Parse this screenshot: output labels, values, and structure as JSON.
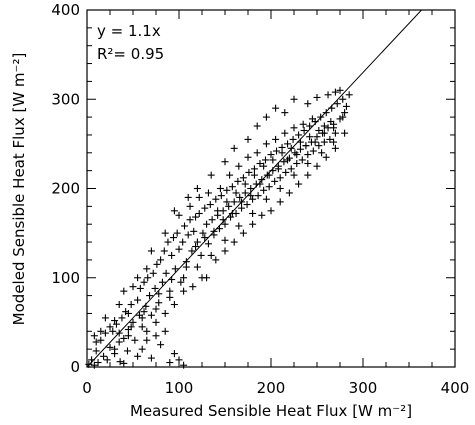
{
  "chart_data": {
    "type": "scatter",
    "title": "",
    "xlabel": "Measured Sensible Heat Flux [W m⁻²]",
    "ylabel": "Modeled Sensible Heat Flux [W m⁻²]",
    "xlim": [
      0,
      400
    ],
    "ylim": [
      0,
      400
    ],
    "xticks": [
      "0",
      "100",
      "200",
      "300",
      "400"
    ],
    "yticks": [
      "0",
      "100",
      "200",
      "300",
      "400"
    ],
    "annotations": {
      "equation": "y = 1.1x",
      "r2": "R²= 0.95"
    },
    "fit_line": {
      "slope": 1.1,
      "intercept": 0
    },
    "grid": false,
    "marker": "plus",
    "points": [
      [
        2,
        3
      ],
      [
        5,
        8
      ],
      [
        8,
        2
      ],
      [
        10,
        18
      ],
      [
        12,
        5
      ],
      [
        15,
        30
      ],
      [
        18,
        12
      ],
      [
        20,
        38
      ],
      [
        22,
        8
      ],
      [
        25,
        22
      ],
      [
        28,
        40
      ],
      [
        30,
        15
      ],
      [
        32,
        48
      ],
      [
        35,
        28
      ],
      [
        36,
        6
      ],
      [
        38,
        55
      ],
      [
        40,
        32
      ],
      [
        42,
        62
      ],
      [
        44,
        18
      ],
      [
        45,
        42
      ],
      [
        48,
        70
      ],
      [
        50,
        50
      ],
      [
        52,
        30
      ],
      [
        55,
        75
      ],
      [
        57,
        58
      ],
      [
        58,
        88
      ],
      [
        60,
        45
      ],
      [
        62,
        95
      ],
      [
        64,
        68
      ],
      [
        66,
        100
      ],
      [
        68,
        80
      ],
      [
        70,
        58
      ],
      [
        72,
        105
      ],
      [
        74,
        88
      ],
      [
        76,
        115
      ],
      [
        78,
        72
      ],
      [
        80,
        120
      ],
      [
        82,
        95
      ],
      [
        84,
        130
      ],
      [
        86,
        105
      ],
      [
        88,
        140
      ],
      [
        90,
        85
      ],
      [
        92,
        125
      ],
      [
        94,
        145
      ],
      [
        96,
        110
      ],
      [
        98,
        150
      ],
      [
        100,
        132
      ],
      [
        102,
        95
      ],
      [
        104,
        140
      ],
      [
        106,
        158
      ],
      [
        108,
        118
      ],
      [
        110,
        148
      ],
      [
        112,
        165
      ],
      [
        114,
        130
      ],
      [
        116,
        152
      ],
      [
        118,
        168
      ],
      [
        120,
        140
      ],
      [
        122,
        172
      ],
      [
        124,
        125
      ],
      [
        126,
        150
      ],
      [
        128,
        178
      ],
      [
        130,
        160
      ],
      [
        132,
        138
      ],
      [
        134,
        182
      ],
      [
        136,
        165
      ],
      [
        138,
        148
      ],
      [
        140,
        188
      ],
      [
        142,
        170
      ],
      [
        144,
        155
      ],
      [
        146,
        192
      ],
      [
        148,
        175
      ],
      [
        150,
        160
      ],
      [
        152,
        198
      ],
      [
        154,
        180
      ],
      [
        156,
        168
      ],
      [
        158,
        202
      ],
      [
        160,
        185
      ],
      [
        162,
        172
      ],
      [
        164,
        208
      ],
      [
        166,
        190
      ],
      [
        168,
        178
      ],
      [
        170,
        212
      ],
      [
        172,
        195
      ],
      [
        174,
        182
      ],
      [
        176,
        218
      ],
      [
        178,
        200
      ],
      [
        180,
        188
      ],
      [
        182,
        222
      ],
      [
        184,
        205
      ],
      [
        186,
        192
      ],
      [
        188,
        228
      ],
      [
        190,
        210
      ],
      [
        192,
        198
      ],
      [
        194,
        232
      ],
      [
        196,
        215
      ],
      [
        198,
        202
      ],
      [
        200,
        238
      ],
      [
        202,
        220
      ],
      [
        204,
        208
      ],
      [
        206,
        242
      ],
      [
        208,
        225
      ],
      [
        210,
        212
      ],
      [
        212,
        246
      ],
      [
        214,
        230
      ],
      [
        216,
        218
      ],
      [
        218,
        250
      ],
      [
        220,
        234
      ],
      [
        222,
        222
      ],
      [
        224,
        255
      ],
      [
        226,
        240
      ],
      [
        228,
        228
      ],
      [
        230,
        260
      ],
      [
        232,
        244
      ],
      [
        234,
        232
      ],
      [
        236,
        265
      ],
      [
        238,
        248
      ],
      [
        240,
        238
      ],
      [
        242,
        270
      ],
      [
        244,
        252
      ],
      [
        246,
        242
      ],
      [
        248,
        275
      ],
      [
        250,
        258
      ],
      [
        252,
        248
      ],
      [
        254,
        280
      ],
      [
        256,
        262
      ],
      [
        258,
        252
      ],
      [
        260,
        285
      ],
      [
        262,
        268
      ],
      [
        264,
        255
      ],
      [
        266,
        290
      ],
      [
        268,
        272
      ],
      [
        270,
        262
      ],
      [
        272,
        295
      ],
      [
        275,
        278
      ],
      [
        278,
        300
      ],
      [
        280,
        285
      ],
      [
        282,
        292
      ],
      [
        285,
        305
      ],
      [
        60,
        20
      ],
      [
        70,
        10
      ],
      [
        80,
        25
      ],
      [
        90,
        5
      ],
      [
        95,
        15
      ],
      [
        100,
        8
      ],
      [
        40,
        4
      ],
      [
        55,
        12
      ],
      [
        65,
        30
      ],
      [
        75,
        35
      ],
      [
        85,
        40
      ],
      [
        105,
        2
      ],
      [
        45,
        60
      ],
      [
        35,
        70
      ],
      [
        50,
        90
      ],
      [
        65,
        110
      ],
      [
        30,
        52
      ],
      [
        25,
        45
      ],
      [
        20,
        55
      ],
      [
        15,
        40
      ],
      [
        10,
        28
      ],
      [
        8,
        35
      ],
      [
        40,
        85
      ],
      [
        55,
        100
      ],
      [
        70,
        130
      ],
      [
        85,
        150
      ],
      [
        95,
        175
      ],
      [
        110,
        190
      ],
      [
        120,
        200
      ],
      [
        135,
        215
      ],
      [
        150,
        230
      ],
      [
        160,
        245
      ],
      [
        175,
        255
      ],
      [
        185,
        270
      ],
      [
        195,
        280
      ],
      [
        205,
        290
      ],
      [
        215,
        285
      ],
      [
        225,
        300
      ],
      [
        240,
        295
      ],
      [
        250,
        302
      ],
      [
        262,
        305
      ],
      [
        270,
        308
      ],
      [
        275,
        310
      ],
      [
        140,
        120
      ],
      [
        150,
        130
      ],
      [
        160,
        140
      ],
      [
        170,
        150
      ],
      [
        180,
        160
      ],
      [
        190,
        170
      ],
      [
        200,
        175
      ],
      [
        210,
        185
      ],
      [
        220,
        195
      ],
      [
        230,
        205
      ],
      [
        240,
        215
      ],
      [
        250,
        225
      ],
      [
        260,
        235
      ],
      [
        270,
        245
      ],
      [
        125,
        100
      ],
      [
        115,
        90
      ],
      [
        105,
        85
      ],
      [
        95,
        70
      ],
      [
        85,
        60
      ],
      [
        75,
        50
      ],
      [
        65,
        40
      ],
      [
        130,
        100
      ],
      [
        145,
        200
      ],
      [
        155,
        215
      ],
      [
        165,
        225
      ],
      [
        175,
        235
      ],
      [
        185,
        240
      ],
      [
        195,
        250
      ],
      [
        205,
        255
      ],
      [
        215,
        262
      ],
      [
        225,
        268
      ],
      [
        235,
        272
      ],
      [
        245,
        278
      ],
      [
        100,
        170
      ],
      [
        112,
        180
      ],
      [
        122,
        190
      ],
      [
        132,
        195
      ],
      [
        142,
        175
      ],
      [
        152,
        185
      ],
      [
        162,
        195
      ],
      [
        172,
        205
      ],
      [
        182,
        215
      ],
      [
        192,
        225
      ],
      [
        202,
        232
      ],
      [
        212,
        240
      ],
      [
        222,
        245
      ],
      [
        232,
        252
      ],
      [
        242,
        258
      ],
      [
        252,
        265
      ],
      [
        258,
        270
      ],
      [
        265,
        275
      ],
      [
        30,
        20
      ],
      [
        45,
        35
      ],
      [
        60,
        55
      ],
      [
        75,
        65
      ],
      [
        90,
        78
      ],
      [
        105,
        100
      ],
      [
        120,
        112
      ],
      [
        135,
        125
      ],
      [
        150,
        142
      ],
      [
        165,
        158
      ],
      [
        180,
        172
      ],
      [
        195,
        188
      ],
      [
        210,
        200
      ],
      [
        225,
        215
      ],
      [
        240,
        228
      ],
      [
        255,
        240
      ],
      [
        268,
        252
      ],
      [
        280,
        262
      ],
      [
        35,
        38
      ],
      [
        48,
        45
      ],
      [
        62,
        62
      ],
      [
        78,
        82
      ],
      [
        92,
        98
      ],
      [
        108,
        112
      ],
      [
        118,
        135
      ],
      [
        128,
        145
      ],
      [
        138,
        152
      ],
      [
        148,
        165
      ],
      [
        158,
        172
      ],
      [
        168,
        185
      ],
      [
        178,
        192
      ],
      [
        188,
        205
      ],
      [
        198,
        215
      ],
      [
        208,
        222
      ],
      [
        218,
        232
      ],
      [
        228,
        238
      ],
      [
        238,
        248
      ],
      [
        248,
        252
      ],
      [
        258,
        262
      ],
      [
        268,
        268
      ],
      [
        278,
        280
      ]
    ]
  }
}
